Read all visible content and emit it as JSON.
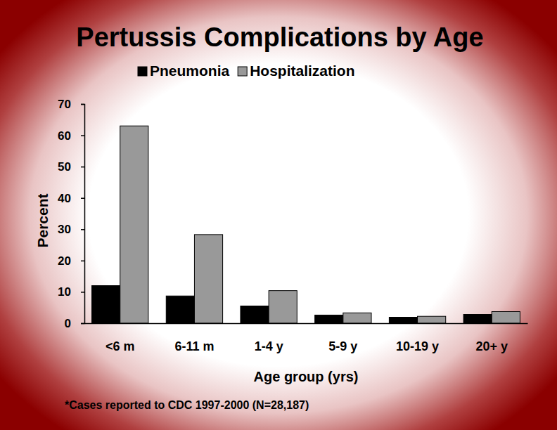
{
  "chart_data": {
    "type": "bar",
    "title": "Pertussis Complications by Age",
    "x_label": "Age group (yrs)",
    "y_label": "Percent",
    "categories": [
      "<6 m",
      "6-11 m",
      "1-4 y",
      "5-9 y",
      "10-19 y",
      "20+ y"
    ],
    "series": [
      {
        "name": "Pneumonia",
        "color": "#000000",
        "values": [
          12,
          8.7,
          5.5,
          2.6,
          1.9,
          2.8
        ]
      },
      {
        "name": "Hospitalization",
        "color": "#999999",
        "values": [
          63,
          28.3,
          10.4,
          3.3,
          2.2,
          3.7
        ]
      }
    ],
    "ylim": [
      0,
      70
    ],
    "yticks": [
      0,
      10,
      20,
      30,
      40,
      50,
      60,
      70
    ],
    "grid": false,
    "legend": "top",
    "annotations": [
      "*Cases reported to CDC 1997-2000 (N=28,187)"
    ]
  }
}
